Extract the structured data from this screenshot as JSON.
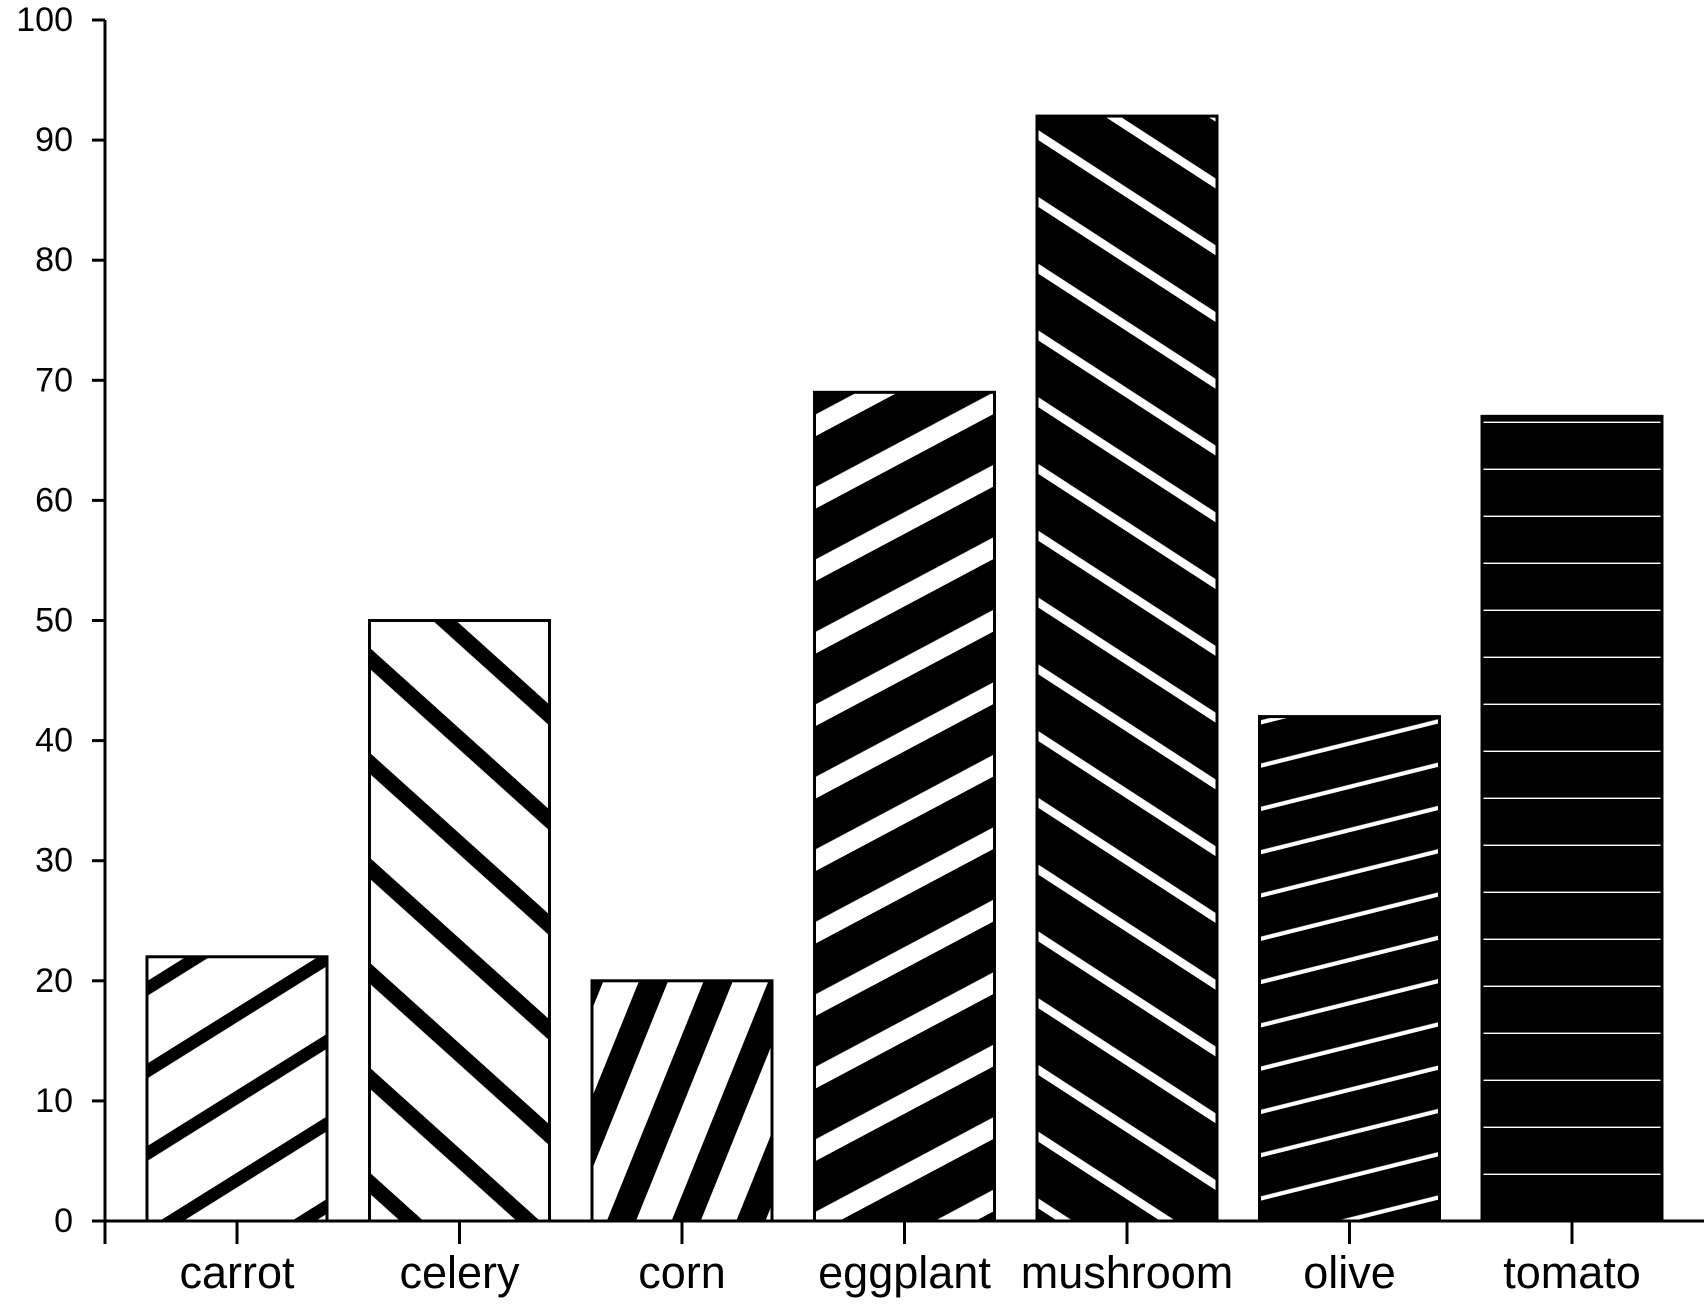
{
  "chart_data": {
    "type": "bar",
    "title": "",
    "xlabel": "",
    "ylabel": "",
    "categories": [
      "carrot",
      "celery",
      "corn",
      "eggplant",
      "mushroom",
      "olive",
      "tomato"
    ],
    "values": [
      22,
      50,
      20,
      69,
      92,
      42,
      67
    ],
    "ylim": [
      0,
      100
    ],
    "yticks": [
      "0",
      "10",
      "20",
      "30",
      "40",
      "50",
      "60",
      "70",
      "80",
      "90",
      "100"
    ],
    "grid": false,
    "legend": "none",
    "bar_fill": "pattern",
    "colors": {
      "ink": "#000000",
      "background": "#ffffff"
    }
  }
}
